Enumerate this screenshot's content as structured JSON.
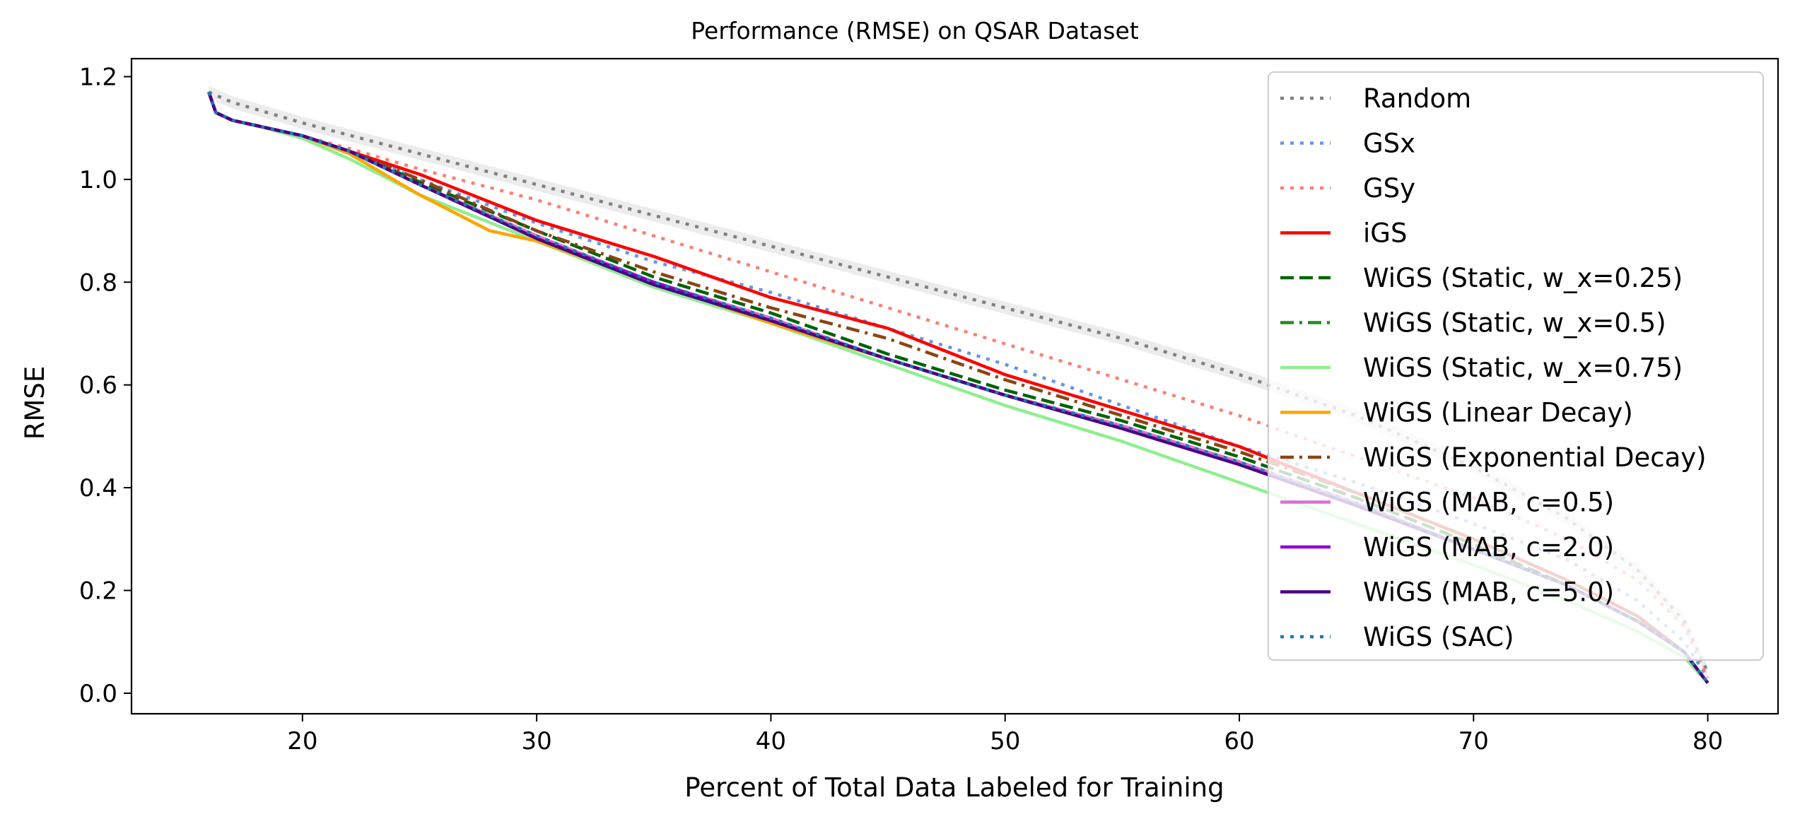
{
  "chart_data": {
    "type": "line",
    "title": "Performance (RMSE) on QSAR Dataset",
    "xlabel": "Percent of Total Data Labeled for Training",
    "ylabel": "RMSE",
    "xlim": [
      12.7,
      83.0
    ],
    "ylim": [
      -0.04,
      1.235
    ],
    "xticks": [
      20,
      30,
      40,
      50,
      60,
      70,
      80
    ],
    "yticks": [
      0.0,
      0.2,
      0.4,
      0.6,
      0.8,
      1.0,
      1.2
    ],
    "xtick_labels": [
      "20",
      "30",
      "40",
      "50",
      "60",
      "70",
      "80"
    ],
    "ytick_labels": [
      "0.0",
      "0.2",
      "0.4",
      "0.6",
      "0.8",
      "1.0",
      "1.2"
    ],
    "grid": false,
    "legend_position": "top-right",
    "series": [
      {
        "name": "Random",
        "color": "#808080",
        "dash": "dotted",
        "opacity": 1,
        "x": [
          16,
          17,
          20,
          25,
          30,
          35,
          40,
          45,
          50,
          55,
          60,
          65,
          70,
          74,
          77,
          79,
          80
        ],
        "y": [
          1.17,
          1.15,
          1.11,
          1.05,
          0.99,
          0.93,
          0.87,
          0.81,
          0.75,
          0.69,
          0.62,
          0.54,
          0.44,
          0.34,
          0.24,
          0.14,
          0.04
        ]
      },
      {
        "name": "GSx",
        "color": "#6495ED",
        "dash": "dotted",
        "opacity": 1,
        "x": [
          16,
          16.3,
          17,
          18,
          20,
          22,
          25,
          30,
          35,
          40,
          45,
          50,
          55,
          60,
          65,
          70,
          74,
          77,
          79,
          80
        ],
        "y": [
          1.17,
          1.13,
          1.115,
          1.105,
          1.085,
          1.055,
          1.0,
          0.915,
          0.84,
          0.78,
          0.71,
          0.64,
          0.56,
          0.48,
          0.41,
          0.33,
          0.26,
          0.18,
          0.1,
          0.03
        ]
      },
      {
        "name": "GSy",
        "color": "#FA8072",
        "dash": "dotted",
        "opacity": 1,
        "x": [
          16,
          16.3,
          17,
          18,
          20,
          22,
          25,
          30,
          35,
          40,
          45,
          50,
          55,
          60,
          65,
          70,
          74,
          77,
          79,
          80
        ],
        "y": [
          1.17,
          1.13,
          1.115,
          1.105,
          1.085,
          1.06,
          1.02,
          0.96,
          0.89,
          0.82,
          0.75,
          0.68,
          0.61,
          0.54,
          0.46,
          0.38,
          0.3,
          0.22,
          0.13,
          0.03
        ]
      },
      {
        "name": "iGS",
        "color": "#FF0000",
        "dash": "solid",
        "opacity": 1,
        "x": [
          16,
          16.3,
          17,
          18,
          20,
          22,
          25,
          30,
          35,
          40,
          45,
          50,
          55,
          60,
          65,
          70,
          74,
          77,
          79,
          80
        ],
        "y": [
          1.17,
          1.13,
          1.115,
          1.105,
          1.085,
          1.055,
          1.01,
          0.92,
          0.85,
          0.77,
          0.71,
          0.62,
          0.55,
          0.48,
          0.39,
          0.3,
          0.22,
          0.15,
          0.08,
          0.02
        ]
      },
      {
        "name": "WiGS (Static, w_x=0.25)",
        "color": "#006400",
        "dash": "dashed",
        "opacity": 1,
        "x": [
          16,
          16.3,
          17,
          18,
          20,
          22,
          25,
          30,
          35,
          40,
          45,
          50,
          55,
          60,
          65,
          70,
          74,
          77,
          79,
          80
        ],
        "y": [
          1.17,
          1.13,
          1.115,
          1.105,
          1.085,
          1.055,
          0.995,
          0.9,
          0.81,
          0.74,
          0.66,
          0.59,
          0.53,
          0.46,
          0.38,
          0.29,
          0.21,
          0.14,
          0.08,
          0.02
        ]
      },
      {
        "name": "WiGS (Static, w_x=0.5)",
        "color": "#228B22",
        "dash": "dashdot",
        "opacity": 1,
        "x": [
          16,
          16.3,
          17,
          18,
          20,
          22,
          25,
          30,
          35,
          40,
          45,
          50,
          55,
          60,
          65,
          70,
          74,
          77,
          79,
          80
        ],
        "y": [
          1.17,
          1.13,
          1.115,
          1.105,
          1.085,
          1.055,
          0.99,
          0.89,
          0.8,
          0.73,
          0.65,
          0.58,
          0.52,
          0.45,
          0.37,
          0.28,
          0.21,
          0.14,
          0.08,
          0.02
        ]
      },
      {
        "name": "WiGS (Static, w_x=0.75)",
        "color": "#90EE90",
        "dash": "solid",
        "opacity": 1,
        "x": [
          16,
          16.3,
          17,
          18,
          20,
          22,
          25,
          30,
          35,
          40,
          45,
          50,
          55,
          60,
          65,
          70,
          74,
          77,
          79,
          80
        ],
        "y": [
          1.17,
          1.13,
          1.115,
          1.105,
          1.08,
          1.04,
          0.97,
          0.88,
          0.79,
          0.72,
          0.64,
          0.56,
          0.49,
          0.41,
          0.33,
          0.25,
          0.18,
          0.12,
          0.07,
          0.02
        ]
      },
      {
        "name": "WiGS (Linear Decay)",
        "color": "#FFA500",
        "dash": "solid",
        "opacity": 1,
        "x": [
          16,
          16.3,
          17,
          18,
          20,
          22,
          25,
          28,
          30,
          35,
          40,
          45,
          50,
          55,
          60,
          65,
          70,
          74,
          77,
          79,
          80
        ],
        "y": [
          1.17,
          1.13,
          1.115,
          1.105,
          1.085,
          1.05,
          0.97,
          0.9,
          0.88,
          0.8,
          0.72,
          0.65,
          0.58,
          0.52,
          0.45,
          0.37,
          0.28,
          0.21,
          0.14,
          0.08,
          0.02
        ]
      },
      {
        "name": "WiGS (Exponential Decay)",
        "color": "#8B4513",
        "dash": "dashdot",
        "opacity": 1,
        "x": [
          16,
          16.3,
          17,
          18,
          20,
          22,
          25,
          30,
          35,
          40,
          45,
          50,
          55,
          60,
          65,
          70,
          74,
          77,
          79,
          80
        ],
        "y": [
          1.17,
          1.13,
          1.115,
          1.105,
          1.085,
          1.055,
          1.0,
          0.9,
          0.82,
          0.75,
          0.69,
          0.61,
          0.54,
          0.47,
          0.39,
          0.3,
          0.22,
          0.15,
          0.08,
          0.02
        ]
      },
      {
        "name": "WiGS (MAB, c=0.5)",
        "color": "#DA70D6",
        "dash": "solid",
        "opacity": 1,
        "x": [
          16,
          16.3,
          17,
          18,
          20,
          22,
          25,
          30,
          35,
          40,
          45,
          50,
          55,
          60,
          65,
          70,
          74,
          77,
          79,
          80
        ],
        "y": [
          1.17,
          1.13,
          1.115,
          1.105,
          1.085,
          1.055,
          0.99,
          0.89,
          0.8,
          0.73,
          0.65,
          0.58,
          0.52,
          0.45,
          0.37,
          0.28,
          0.21,
          0.14,
          0.08,
          0.02
        ]
      },
      {
        "name": "WiGS (MAB, c=2.0)",
        "color": "#9400D3",
        "dash": "solid",
        "opacity": 1,
        "x": [
          16,
          16.3,
          17,
          18,
          20,
          22,
          25,
          30,
          35,
          40,
          45,
          50,
          55,
          60,
          65,
          70,
          74,
          77,
          79,
          80
        ],
        "y": [
          1.17,
          1.13,
          1.115,
          1.105,
          1.085,
          1.055,
          0.99,
          0.885,
          0.8,
          0.725,
          0.65,
          0.58,
          0.515,
          0.445,
          0.365,
          0.28,
          0.21,
          0.14,
          0.08,
          0.02
        ]
      },
      {
        "name": "WiGS (MAB, c=5.0)",
        "color": "#4B0082",
        "dash": "solid",
        "opacity": 1,
        "x": [
          16,
          16.3,
          17,
          18,
          20,
          22,
          25,
          30,
          35,
          40,
          45,
          50,
          55,
          60,
          65,
          70,
          74,
          77,
          79,
          80
        ],
        "y": [
          1.17,
          1.13,
          1.115,
          1.105,
          1.085,
          1.055,
          0.99,
          0.885,
          0.795,
          0.725,
          0.65,
          0.58,
          0.515,
          0.445,
          0.365,
          0.28,
          0.21,
          0.14,
          0.08,
          0.02
        ]
      },
      {
        "name": "WiGS (SAC)",
        "color": "#1F77B4",
        "dash": "dotted",
        "opacity": 1,
        "x": [
          16,
          16.3,
          17,
          18,
          20,
          22,
          25,
          30,
          35,
          40,
          45,
          50,
          55,
          60,
          65,
          70,
          74,
          77,
          79,
          80
        ],
        "y": [
          1.17,
          1.13,
          1.115,
          1.105,
          1.085,
          1.055,
          0.99,
          0.89,
          0.8,
          0.73,
          0.65,
          0.58,
          0.52,
          0.45,
          0.37,
          0.28,
          0.21,
          0.14,
          0.08,
          0.02
        ]
      }
    ]
  }
}
